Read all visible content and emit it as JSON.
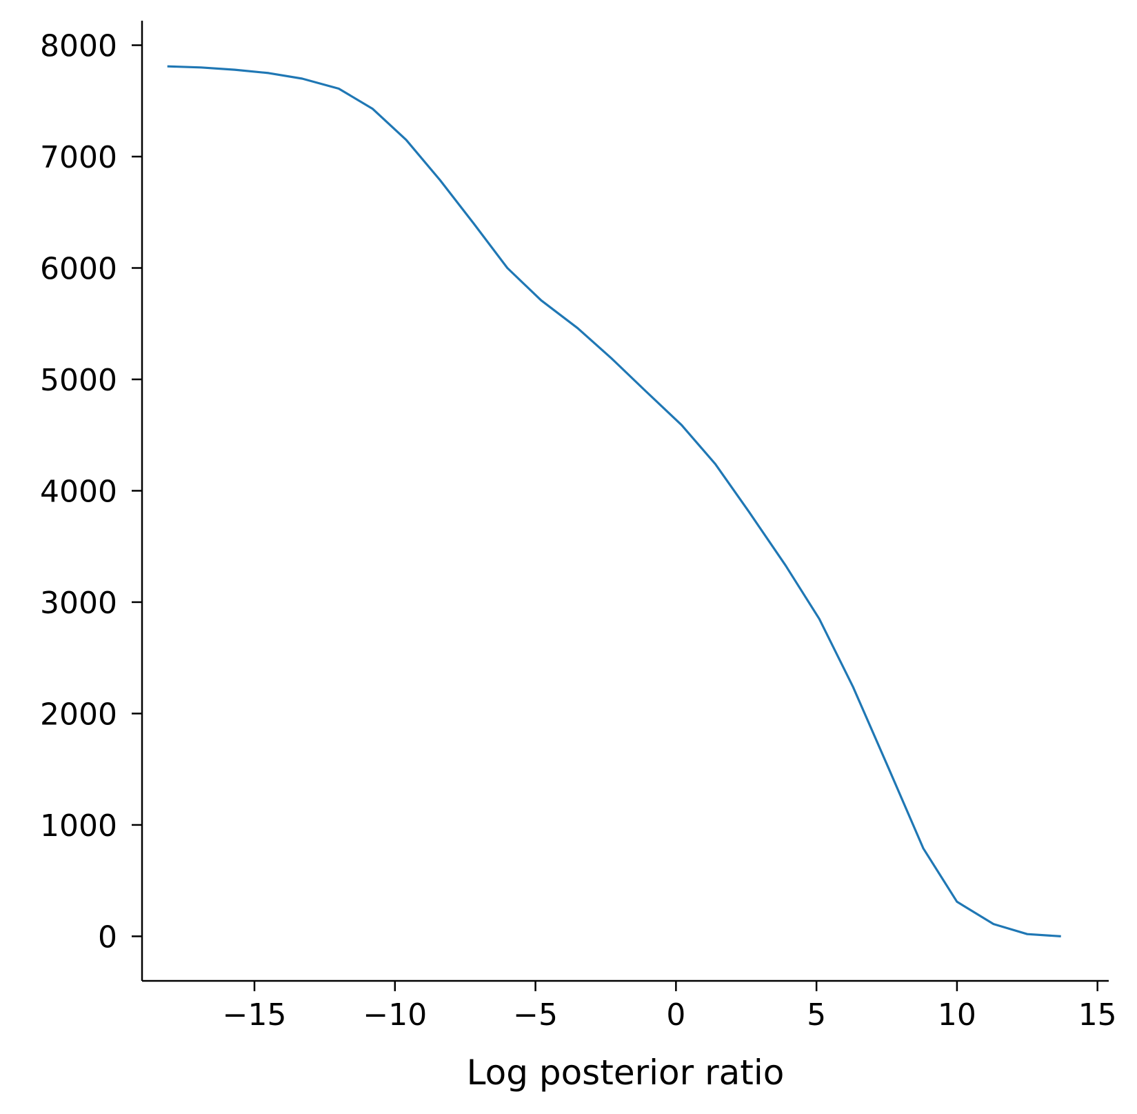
{
  "chart_data": {
    "type": "line",
    "title": "",
    "xlabel": "Log posterior ratio",
    "ylabel": "",
    "xlim": [
      -19.0,
      15.4
    ],
    "ylim": [
      -400,
      8220
    ],
    "x_ticks": [
      -15,
      -10,
      -5,
      0,
      5,
      10,
      15
    ],
    "x_tick_labels": [
      "−15",
      "−10",
      "−5",
      "0",
      "5",
      "10",
      "15"
    ],
    "y_ticks": [
      0,
      1000,
      2000,
      3000,
      4000,
      5000,
      6000,
      7000,
      8000
    ],
    "y_tick_labels": [
      "0",
      "1000",
      "2000",
      "3000",
      "4000",
      "5000",
      "6000",
      "7000",
      "8000"
    ],
    "grid": false,
    "legend": "none",
    "series": [
      {
        "color": "#1f77b4",
        "x": [
          -18.1,
          -16.9,
          -15.7,
          -14.5,
          -13.3,
          -12.0,
          -10.8,
          -9.6,
          -8.4,
          -7.2,
          -6.0,
          -4.8,
          -3.5,
          -2.3,
          -1.1,
          0.2,
          1.4,
          2.6,
          3.9,
          5.1,
          6.3,
          7.6,
          8.8,
          10.0,
          11.3,
          12.5,
          13.7
        ],
        "y": [
          7810,
          7800,
          7780,
          7750,
          7700,
          7610,
          7430,
          7150,
          6790,
          6400,
          6000,
          5710,
          5460,
          5190,
          4900,
          4590,
          4240,
          3810,
          3330,
          2850,
          2240,
          1490,
          790,
          310,
          110,
          20,
          0
        ]
      }
    ]
  }
}
